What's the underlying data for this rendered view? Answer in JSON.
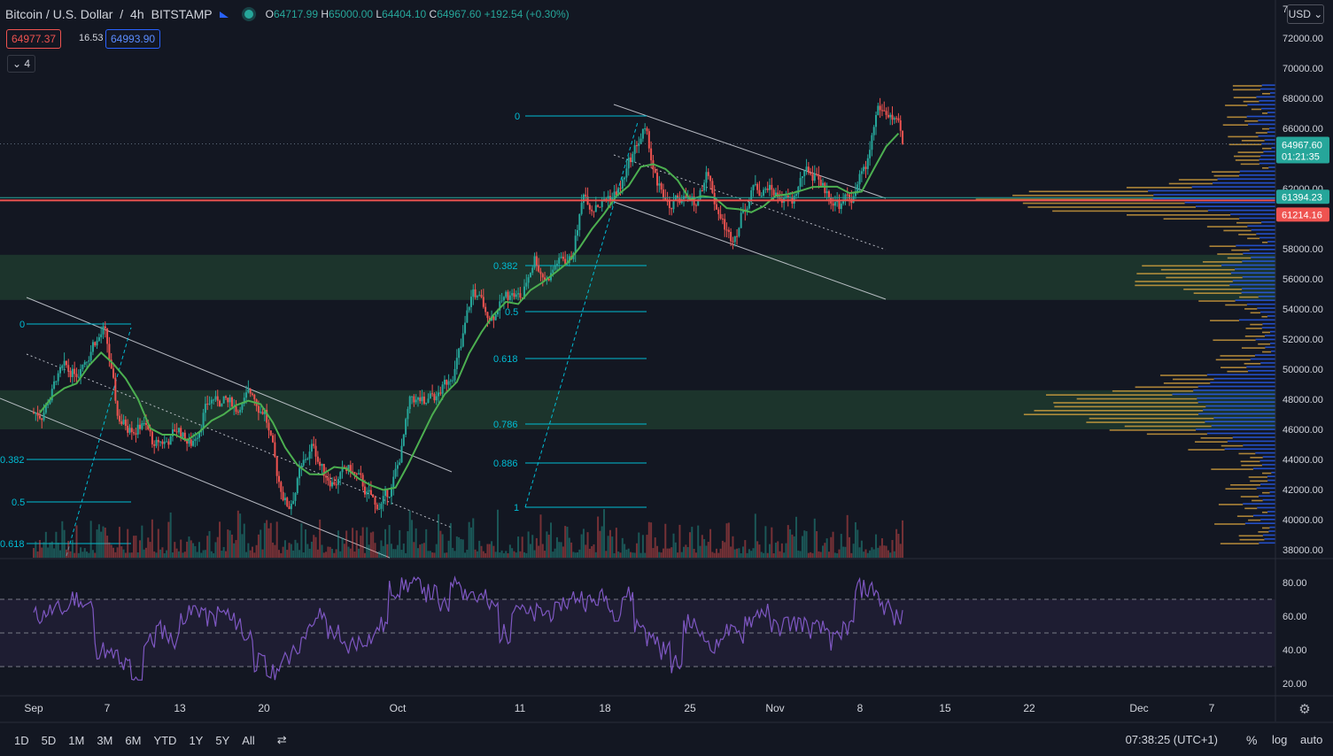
{
  "header": {
    "symbol": "Bitcoin / U.S. Dollar",
    "interval": "4h",
    "exchange": "BITSTAMP",
    "open_label": "O",
    "open": "64717.99",
    "high_label": "H",
    "high": "65000.00",
    "low_label": "L",
    "low": "64404.10",
    "close_label": "C",
    "close": "64967.60",
    "change": "+192.54 (+0.30%)"
  },
  "trade": {
    "sell": "64977.37",
    "spread": "16.53",
    "buy": "64993.90"
  },
  "indicators_toggle": "4",
  "currency": "USD",
  "price_axis": {
    "ticks": [
      "72000.00",
      "70000.00",
      "68000.00",
      "66000.00",
      "62000.00",
      "58000.00",
      "56000.00",
      "54000.00",
      "52000.00",
      "50000.00",
      "48000.00",
      "46000.00",
      "44000.00",
      "42000.00",
      "40000.00",
      "38000.00"
    ],
    "top_partial": "7",
    "last_price": "64967.60",
    "countdown": "01:21:35",
    "level_green": "61394.23",
    "level_red": "61214.16"
  },
  "rsi_axis": {
    "ticks": [
      "80.00",
      "60.00",
      "40.00",
      "20.00"
    ]
  },
  "time_axis": {
    "labels": [
      "Sep",
      "7",
      "13",
      "20",
      "Oct",
      "11",
      "18",
      "25",
      "Nov",
      "8",
      "15",
      "22",
      "Dec",
      "7"
    ]
  },
  "fib_left": [
    "0",
    "0.382",
    "0.5",
    "0.618"
  ],
  "fib_right": [
    "0",
    "0.382",
    "0.5",
    "0.618",
    "0.786",
    "0.886",
    "1"
  ],
  "bottom_bar": {
    "timeframes": [
      "1D",
      "5D",
      "1M",
      "3M",
      "6M",
      "YTD",
      "1Y",
      "5Y",
      "All"
    ],
    "clock": "07:38:25 (UTC+1)",
    "percent": "%",
    "log": "log",
    "auto": "auto"
  },
  "colors": {
    "up": "#26a69a",
    "down": "#ef5350",
    "ma": "#4caf50",
    "rsi": "#7e57c2",
    "fib": "#00bcd4",
    "zone": "#1e3a2e",
    "vp_up": "#2962ff",
    "vp_down": "#f0b341"
  },
  "chart_data": {
    "type": "candlestick",
    "timeframe": "4h",
    "close_series_daily": [
      [
        "Sep 1",
        47100
      ],
      [
        "Sep 2",
        49200
      ],
      [
        "Sep 3",
        49900
      ],
      [
        "Sep 4",
        50000
      ],
      [
        "Sep 5",
        51800
      ],
      [
        "Sep 6",
        52700
      ],
      [
        "Sep 7",
        46900
      ],
      [
        "Sep 8",
        46100
      ],
      [
        "Sep 9",
        46400
      ],
      [
        "Sep 10",
        44900
      ],
      [
        "Sep 11",
        45200
      ],
      [
        "Sep 12",
        46100
      ],
      [
        "Sep 13",
        44900
      ],
      [
        "Sep 14",
        47100
      ],
      [
        "Sep 15",
        48200
      ],
      [
        "Sep 16",
        47800
      ],
      [
        "Sep 17",
        47300
      ],
      [
        "Sep 18",
        48300
      ],
      [
        "Sep 19",
        47300
      ],
      [
        "Sep 20",
        42900
      ],
      [
        "Sep 21",
        40700
      ],
      [
        "Sep 22",
        43600
      ],
      [
        "Sep 23",
        44900
      ],
      [
        "Sep 24",
        42800
      ],
      [
        "Sep 25",
        42700
      ],
      [
        "Sep 26",
        43200
      ],
      [
        "Sep 27",
        42200
      ],
      [
        "Sep 28",
        41000
      ],
      [
        "Sep 29",
        41500
      ],
      [
        "Sep 30",
        43800
      ],
      [
        "Oct 1",
        48200
      ],
      [
        "Oct 2",
        47700
      ],
      [
        "Oct 3",
        48200
      ],
      [
        "Oct 4",
        49200
      ],
      [
        "Oct 5",
        51500
      ],
      [
        "Oct 6",
        55300
      ],
      [
        "Oct 7",
        53800
      ],
      [
        "Oct 8",
        53900
      ],
      [
        "Oct 9",
        54900
      ],
      [
        "Oct 10",
        54700
      ],
      [
        "Oct 11",
        57500
      ],
      [
        "Oct 12",
        56000
      ],
      [
        "Oct 13",
        57400
      ],
      [
        "Oct 14",
        57300
      ],
      [
        "Oct 15",
        61600
      ],
      [
        "Oct 16",
        60900
      ],
      [
        "Oct 17",
        61500
      ],
      [
        "Oct 18",
        62000
      ],
      [
        "Oct 19",
        64300
      ],
      [
        "Oct 20",
        66000
      ],
      [
        "Oct 21",
        62200
      ],
      [
        "Oct 22",
        60700
      ],
      [
        "Oct 23",
        61300
      ],
      [
        "Oct 24",
        60900
      ],
      [
        "Oct 25",
        63100
      ],
      [
        "Oct 26",
        60300
      ],
      [
        "Oct 27",
        58500
      ],
      [
        "Oct 28",
        60600
      ],
      [
        "Oct 29",
        62300
      ],
      [
        "Oct 30",
        61900
      ],
      [
        "Oct 31",
        61300
      ],
      [
        "Nov 1",
        61000
      ],
      [
        "Nov 2",
        63200
      ],
      [
        "Nov 3",
        62900
      ],
      [
        "Nov 4",
        61400
      ],
      [
        "Nov 5",
        61000
      ],
      [
        "Nov 6",
        61500
      ],
      [
        "Nov 7",
        63300
      ],
      [
        "Nov 8",
        67500
      ],
      [
        "Nov 9",
        66900
      ],
      [
        "Nov 10",
        64967.6
      ]
    ],
    "ma_description": "moving average (green)",
    "rsi": {
      "range": [
        20,
        90
      ],
      "bands": [
        30,
        50,
        70
      ]
    },
    "levels": [
      61394.23,
      61214.16
    ],
    "zones": [
      [
        54600,
        57600
      ],
      [
        46000,
        48600
      ]
    ],
    "fib_left": {
      "levels": [
        "0",
        "0.382",
        "0.5",
        "0.618"
      ]
    },
    "fib_right": {
      "levels": [
        "0",
        "0.382",
        "0.5",
        "0.618",
        "0.786",
        "0.886",
        "1"
      ]
    },
    "ylim": [
      37500,
      73500
    ]
  }
}
